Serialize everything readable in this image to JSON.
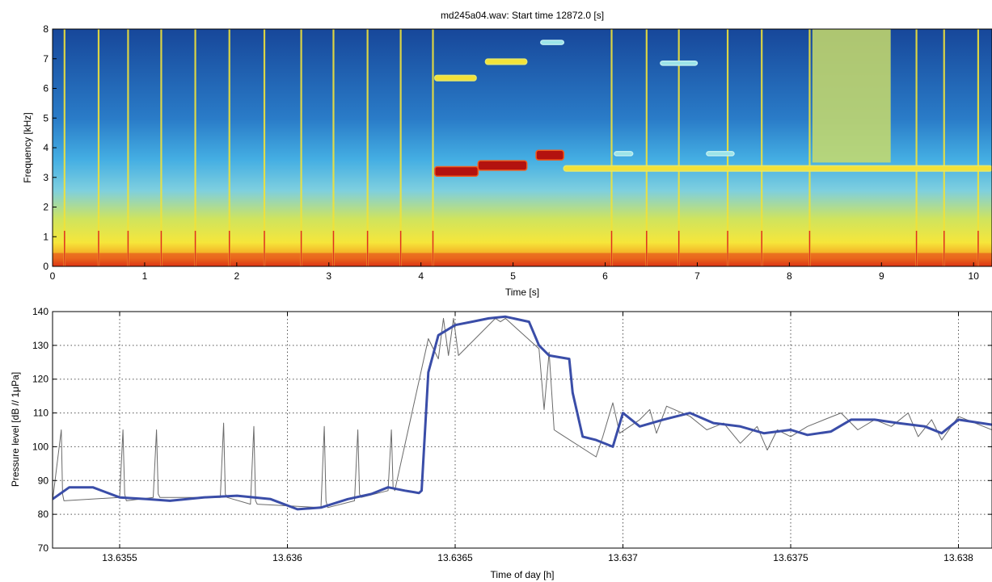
{
  "chart_data": [
    {
      "type": "heatmap",
      "title": "md245a04.wav:  Start time 12872.0 [s]",
      "xlabel": "Time [s]",
      "ylabel": "Frequency [kHz]",
      "xlim": [
        0,
        10.2
      ],
      "ylim": [
        0,
        8
      ],
      "xticks": [
        "0",
        "1",
        "2",
        "3",
        "4",
        "5",
        "6",
        "7",
        "8",
        "9",
        "10"
      ],
      "yticks": [
        "0",
        "1",
        "2",
        "3",
        "4",
        "5",
        "6",
        "7",
        "8"
      ],
      "colormap": [
        "#08306b",
        "#1f5fb4",
        "#3fa9e0",
        "#7fd0e0",
        "#d9e85a",
        "#f6e83a",
        "#f5a623",
        "#e0301e",
        "#8b0000"
      ],
      "pulse_times": [
        0.13,
        0.5,
        0.82,
        1.18,
        1.55,
        1.92,
        2.3,
        2.7,
        3.05,
        3.42,
        3.78,
        4.13,
        6.07,
        6.45,
        6.8,
        7.33,
        7.7,
        8.22,
        9.38,
        9.68,
        10.05
      ],
      "whistle_segments": [
        {
          "t0": 4.15,
          "t1": 4.62,
          "f": 3.2,
          "level": "very high"
        },
        {
          "t0": 4.62,
          "t1": 5.15,
          "f": 3.4,
          "level": "very high"
        },
        {
          "t0": 5.25,
          "t1": 5.55,
          "f": 3.75,
          "level": "very high"
        },
        {
          "t0": 5.55,
          "t1": 10.2,
          "f": 3.3,
          "level": "medium"
        },
        {
          "t0": 4.15,
          "t1": 4.6,
          "f": 6.35,
          "level": "medium"
        },
        {
          "t0": 4.7,
          "t1": 5.15,
          "f": 6.9,
          "level": "medium"
        },
        {
          "t0": 5.3,
          "t1": 5.55,
          "f": 7.55,
          "level": "low"
        },
        {
          "t0": 6.1,
          "t1": 6.3,
          "f": 3.8,
          "level": "low"
        },
        {
          "t0": 6.6,
          "t1": 7.0,
          "f": 6.85,
          "level": "low"
        },
        {
          "t0": 7.1,
          "t1": 7.4,
          "f": 3.8,
          "level": "low"
        }
      ],
      "broadband_burst": {
        "t0": 8.25,
        "t1": 9.1,
        "f0": 3.5,
        "f1": 8
      }
    },
    {
      "type": "line",
      "xlabel": "Time of day [h]",
      "ylabel": "Pressure level [dB // 1μPa]",
      "xlim": [
        13.6353,
        13.6381
      ],
      "ylim": [
        70,
        140
      ],
      "xticks": [
        "13.6355",
        "13.636",
        "13.6365",
        "13.637",
        "13.6375",
        "13.638"
      ],
      "yticks": [
        "70",
        "80",
        "90",
        "100",
        "110",
        "120",
        "130",
        "140"
      ],
      "grid": true,
      "series": [
        {
          "color": "#3a4da8",
          "x": [
            13.6353,
            13.63535,
            13.63542,
            13.6355,
            13.63558,
            13.63565,
            13.63575,
            13.63585,
            13.63595,
            13.63603,
            13.6361,
            13.63618,
            13.63625,
            13.6363,
            13.63635,
            13.63638,
            13.636392,
            13.6364,
            13.63642,
            13.63645,
            13.6365,
            13.63655,
            13.6366,
            13.63665,
            13.63672,
            13.63675,
            13.63678,
            13.63684,
            13.63685,
            13.63688,
            13.63692,
            13.63697,
            13.637,
            13.63705,
            13.63712,
            13.6372,
            13.63727,
            13.63735,
            13.63742,
            13.6375,
            13.63755,
            13.63762,
            13.63768,
            13.63775,
            13.63782,
            13.6379,
            13.63795,
            13.638,
            13.6381
          ],
          "y": [
            84.5,
            88,
            88,
            85,
            84.5,
            84,
            85,
            85.5,
            84.5,
            81.5,
            82,
            84.5,
            86,
            88,
            87,
            86.5,
            86.3,
            87,
            122,
            133,
            136,
            137,
            138,
            138.5,
            137,
            130,
            127,
            126,
            116,
            103,
            102,
            100,
            110,
            106,
            108,
            110,
            107,
            106,
            104,
            105,
            103.5,
            104.5,
            108,
            108,
            107,
            106,
            104,
            108,
            106.5
          ]
        },
        {
          "color": "#6a6a6a",
          "x": [
            13.6353,
            13.635326,
            13.63533,
            13.635334,
            13.6355,
            13.63551,
            13.635515,
            13.63552,
            13.6356,
            13.63561,
            13.635615,
            13.63562,
            13.6358,
            13.63581,
            13.635815,
            13.63582,
            13.63589,
            13.6359,
            13.635905,
            13.63591,
            13.6361,
            13.63611,
            13.636115,
            13.63612,
            13.6362,
            13.63621,
            13.636215,
            13.63622,
            13.6363,
            13.63631,
            13.636315,
            13.63632,
            13.63642,
            13.63645,
            13.636465,
            13.63648,
            13.636495,
            13.63651,
            13.63662,
            13.636635,
            13.63665,
            13.63675,
            13.636765,
            13.63678,
            13.636795,
            13.63681,
            13.63692,
            13.63694,
            13.63697,
            13.63699,
            13.63705,
            13.63708,
            13.6371,
            13.63713,
            13.6372,
            13.63725,
            13.6373,
            13.63735,
            13.6374,
            13.63743,
            13.63746,
            13.6375,
            13.63755,
            13.6376,
            13.63765,
            13.6377,
            13.63775,
            13.6378,
            13.63785,
            13.63788,
            13.63792,
            13.63795,
            13.638,
            13.6381
          ],
          "y": [
            84,
            105,
            86,
            84,
            85,
            105,
            86,
            84,
            85,
            105,
            86,
            85,
            85,
            107,
            86,
            85,
            83,
            106,
            84,
            83,
            82,
            106,
            84,
            82,
            84,
            105,
            86,
            85,
            87,
            105,
            88,
            87,
            132,
            126,
            138,
            127,
            138,
            127,
            138,
            137,
            138,
            129,
            111,
            128,
            105,
            104,
            97,
            103,
            113,
            104,
            108,
            111,
            104,
            112,
            109,
            105,
            107,
            101,
            106,
            99,
            105,
            103,
            106,
            108,
            110,
            105,
            108,
            106,
            110,
            103,
            108,
            102,
            109,
            105
          ]
        }
      ]
    }
  ]
}
